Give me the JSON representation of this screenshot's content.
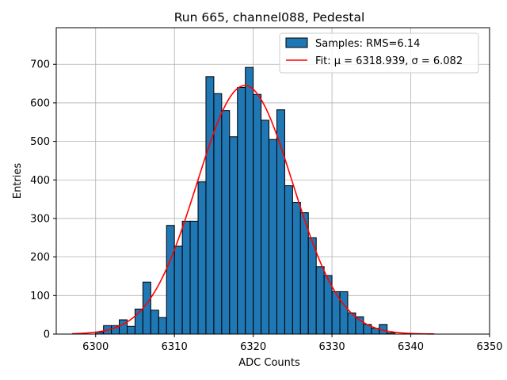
{
  "chart_data": {
    "type": "bar",
    "title": "Run 665, channel088, Pedestal",
    "xlabel": "ADC Counts",
    "ylabel": "Entries",
    "xlim": [
      6295,
      6350
    ],
    "ylim": [
      0,
      795
    ],
    "xticks": [
      6300,
      6310,
      6320,
      6330,
      6340,
      6350
    ],
    "yticks": [
      0,
      100,
      200,
      300,
      400,
      500,
      600,
      700
    ],
    "grid": true,
    "legend_position": "top-right",
    "bin_width": 1,
    "bin_starts": [
      6300,
      6301,
      6302,
      6303,
      6304,
      6305,
      6306,
      6307,
      6308,
      6309,
      6310,
      6311,
      6312,
      6313,
      6314,
      6315,
      6316,
      6317,
      6318,
      6319,
      6320,
      6321,
      6322,
      6323,
      6324,
      6325,
      6326,
      6327,
      6328,
      6329,
      6330,
      6331,
      6332,
      6333,
      6334,
      6335,
      6336,
      6337
    ],
    "counts": [
      5,
      22,
      22,
      37,
      20,
      65,
      135,
      62,
      43,
      282,
      228,
      293,
      293,
      395,
      668,
      624,
      580,
      512,
      640,
      692,
      622,
      555,
      505,
      582,
      385,
      342,
      315,
      250,
      175,
      152,
      110,
      110,
      55,
      45,
      25,
      15,
      25,
      3
    ],
    "series": [
      {
        "name": "Samples: RMS=6.14",
        "kind": "histogram",
        "color": "#1f77b4",
        "edgecolor": "#000000"
      },
      {
        "name": "Fit: μ = 6318.939, σ = 6.082",
        "kind": "line",
        "color": "#ff0000",
        "mu": 6318.939,
        "sigma": 6.082,
        "amplitude": 645,
        "x_range": [
          6297,
          6343
        ]
      }
    ]
  }
}
